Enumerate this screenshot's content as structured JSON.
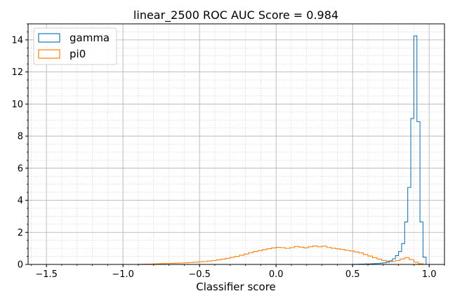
{
  "chart_data": {
    "type": "histogram",
    "title": "linear_2500 ROC AUC Score = 0.984",
    "xlabel": "Classifier score",
    "ylabel": "",
    "xlim": [
      -1.62,
      1.1
    ],
    "ylim": [
      0,
      15
    ],
    "x_ticks": [
      -1.5,
      -1.0,
      -0.5,
      0.0,
      0.5,
      1.0
    ],
    "x_tick_labels": [
      "−1.5",
      "−1.0",
      "−0.5",
      "0.0",
      "0.5",
      "1.0"
    ],
    "y_ticks": [
      0,
      2,
      4,
      6,
      8,
      10,
      12,
      14
    ],
    "y_tick_labels": [
      "0",
      "2",
      "4",
      "6",
      "8",
      "10",
      "12",
      "14"
    ],
    "grid": true,
    "legend_position": "upper-left",
    "series": [
      {
        "name": "gamma",
        "color": "#1f77b4",
        "bins": [
          [
            0.5,
            0.52,
            0.01
          ],
          [
            0.52,
            0.54,
            0.01
          ],
          [
            0.54,
            0.56,
            0.02
          ],
          [
            0.56,
            0.58,
            0.02
          ],
          [
            0.58,
            0.6,
            0.03
          ],
          [
            0.6,
            0.62,
            0.03
          ],
          [
            0.62,
            0.64,
            0.04
          ],
          [
            0.64,
            0.66,
            0.05
          ],
          [
            0.66,
            0.68,
            0.06
          ],
          [
            0.68,
            0.7,
            0.08
          ],
          [
            0.7,
            0.72,
            0.1
          ],
          [
            0.72,
            0.74,
            0.14
          ],
          [
            0.74,
            0.76,
            0.22
          ],
          [
            0.76,
            0.78,
            0.35
          ],
          [
            0.78,
            0.8,
            0.55
          ],
          [
            0.8,
            0.82,
            0.8
          ],
          [
            0.82,
            0.84,
            1.3
          ],
          [
            0.84,
            0.86,
            2.65
          ],
          [
            0.86,
            0.88,
            4.8
          ],
          [
            0.88,
            0.9,
            9.1
          ],
          [
            0.9,
            0.92,
            14.25
          ],
          [
            0.92,
            0.94,
            8.9
          ],
          [
            0.94,
            0.96,
            2.65
          ],
          [
            0.96,
            0.98,
            0.45
          ]
        ]
      },
      {
        "name": "pi0",
        "color": "#ff7f0e",
        "bins": [
          [
            -0.9,
            -0.87,
            0.01
          ],
          [
            -0.87,
            -0.84,
            0.02
          ],
          [
            -0.84,
            -0.81,
            0.02
          ],
          [
            -0.81,
            -0.78,
            0.03
          ],
          [
            -0.78,
            -0.75,
            0.04
          ],
          [
            -0.75,
            -0.72,
            0.05
          ],
          [
            -0.72,
            -0.69,
            0.06
          ],
          [
            -0.69,
            -0.66,
            0.07
          ],
          [
            -0.66,
            -0.63,
            0.08
          ],
          [
            -0.63,
            -0.6,
            0.09
          ],
          [
            -0.6,
            -0.57,
            0.1
          ],
          [
            -0.57,
            -0.54,
            0.12
          ],
          [
            -0.54,
            -0.51,
            0.14
          ],
          [
            -0.51,
            -0.48,
            0.16
          ],
          [
            -0.48,
            -0.45,
            0.18
          ],
          [
            -0.45,
            -0.42,
            0.21
          ],
          [
            -0.42,
            -0.39,
            0.24
          ],
          [
            -0.39,
            -0.36,
            0.28
          ],
          [
            -0.36,
            -0.33,
            0.33
          ],
          [
            -0.33,
            -0.3,
            0.38
          ],
          [
            -0.3,
            -0.27,
            0.44
          ],
          [
            -0.27,
            -0.24,
            0.5
          ],
          [
            -0.24,
            -0.21,
            0.57
          ],
          [
            -0.21,
            -0.18,
            0.65
          ],
          [
            -0.18,
            -0.15,
            0.73
          ],
          [
            -0.15,
            -0.12,
            0.8
          ],
          [
            -0.12,
            -0.09,
            0.86
          ],
          [
            -0.09,
            -0.06,
            0.92
          ],
          [
            -0.06,
            -0.03,
            0.98
          ],
          [
            -0.03,
            0.0,
            1.03
          ],
          [
            0.0,
            0.03,
            1.07
          ],
          [
            0.03,
            0.06,
            1.05
          ],
          [
            0.06,
            0.09,
            1.0
          ],
          [
            0.09,
            0.12,
            1.05
          ],
          [
            0.12,
            0.15,
            1.12
          ],
          [
            0.15,
            0.18,
            1.08
          ],
          [
            0.18,
            0.21,
            1.03
          ],
          [
            0.21,
            0.24,
            1.1
          ],
          [
            0.24,
            0.27,
            1.15
          ],
          [
            0.27,
            0.3,
            1.1
          ],
          [
            0.3,
            0.33,
            1.14
          ],
          [
            0.33,
            0.36,
            1.06
          ],
          [
            0.36,
            0.39,
            1.01
          ],
          [
            0.39,
            0.42,
            0.97
          ],
          [
            0.42,
            0.45,
            0.93
          ],
          [
            0.45,
            0.48,
            0.88
          ],
          [
            0.48,
            0.51,
            0.84
          ],
          [
            0.51,
            0.54,
            0.78
          ],
          [
            0.54,
            0.57,
            0.72
          ],
          [
            0.57,
            0.6,
            0.62
          ],
          [
            0.6,
            0.63,
            0.52
          ],
          [
            0.63,
            0.66,
            0.42
          ],
          [
            0.66,
            0.69,
            0.33
          ],
          [
            0.69,
            0.72,
            0.25
          ],
          [
            0.72,
            0.75,
            0.2
          ],
          [
            0.75,
            0.78,
            0.18
          ],
          [
            0.78,
            0.81,
            0.24
          ],
          [
            0.81,
            0.84,
            0.34
          ],
          [
            0.84,
            0.87,
            0.42
          ],
          [
            0.87,
            0.9,
            0.3
          ],
          [
            0.9,
            0.93,
            0.14
          ],
          [
            0.93,
            0.96,
            0.04
          ]
        ]
      }
    ]
  }
}
